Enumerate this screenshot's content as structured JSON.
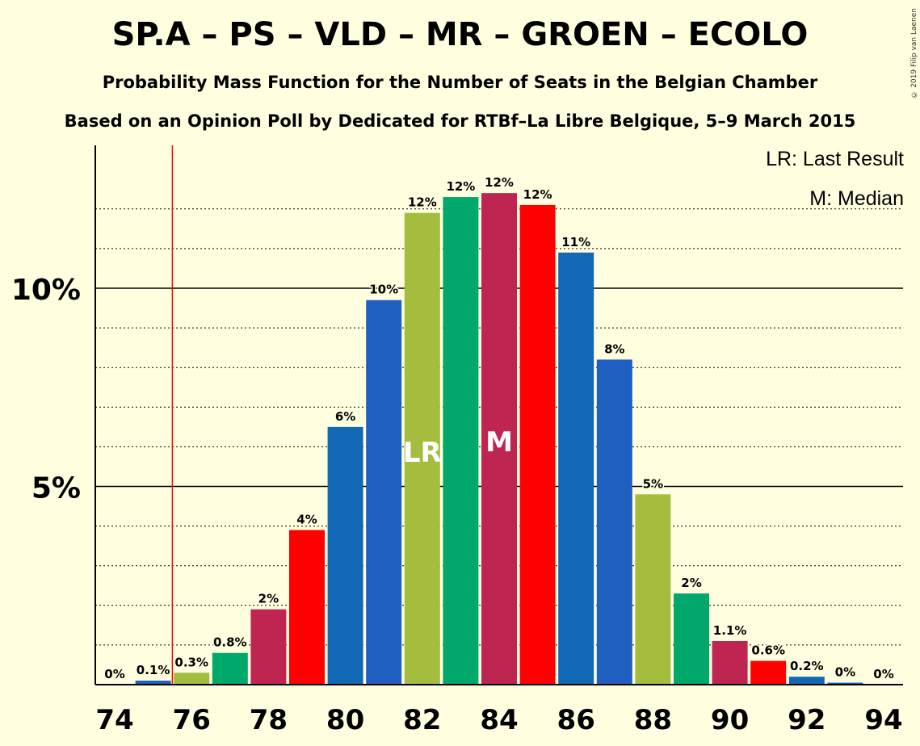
{
  "title": "SP.A – PS – VLD – MR – GROEN – ECOLO",
  "subtitle": "Probability Mass Function for the Number of Seats in the Belgian Chamber",
  "subtitle2": "Based on an Opinion Poll by Dedicated for RTBf–La Libre Belgique, 5–9 March 2015",
  "copyright": "© 2019 Filip van Laenen",
  "legend": {
    "last_result": "LR: Last Result",
    "median": "M: Median"
  },
  "chart_data": {
    "type": "bar",
    "x": [
      74,
      75,
      76,
      77,
      78,
      79,
      80,
      81,
      82,
      83,
      84,
      85,
      86,
      87,
      88,
      89,
      90,
      91,
      92,
      93,
      94
    ],
    "values": [
      0,
      0.1,
      0.3,
      0.8,
      1.9,
      3.9,
      6.5,
      9.7,
      11.9,
      12.3,
      12.4,
      12.1,
      10.9,
      8.2,
      4.8,
      2.3,
      1.1,
      0.6,
      0.2,
      0.05,
      0
    ],
    "labels": [
      "0%",
      "0.1%",
      "0.3%",
      "0.8%",
      "2%",
      "4%",
      "6%",
      "10%",
      "12%",
      "12%",
      "12%",
      "12%",
      "11%",
      "8%",
      "5%",
      "2%",
      "1.1%",
      "0.6%",
      "0.2%",
      "0%",
      "0%"
    ],
    "colors": [
      "#1F5FBF",
      "#1F5FBF",
      "#A4BD3F",
      "#00A86B",
      "#BE2551",
      "#FF0000",
      "#1168B4",
      "#1F5FBF",
      "#A4BD3F",
      "#00A86B",
      "#BE2551",
      "#FF0000",
      "#1168B4",
      "#1F5FBF",
      "#A4BD3F",
      "#00A86B",
      "#BE2551",
      "#FF0000",
      "#1168B4",
      "#1F5FBF",
      "#1F5FBF"
    ],
    "x_tick_labels": [
      "74",
      "76",
      "78",
      "80",
      "82",
      "84",
      "86",
      "88",
      "90",
      "92",
      "94"
    ],
    "y_tick_labels": [
      "5%",
      "10%"
    ],
    "ylim": [
      0,
      13.5
    ],
    "last_result_seat": 82,
    "last_result_label": "LR",
    "median_seat": 84,
    "median_label": "M",
    "lr_line_seat": 75.5,
    "lr_line_color": "#FF0000"
  }
}
